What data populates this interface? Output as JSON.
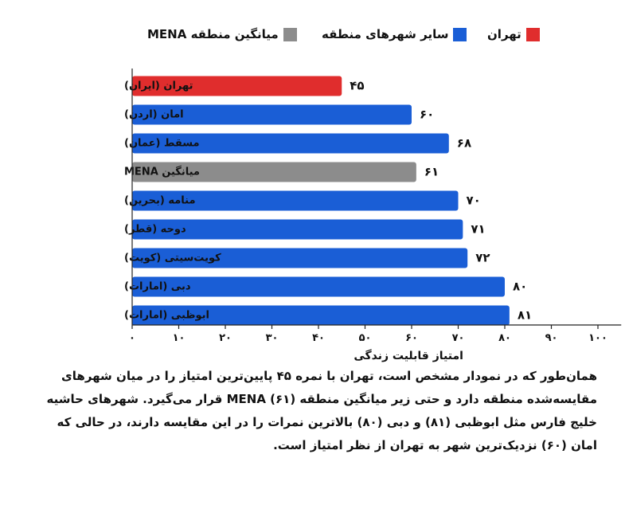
{
  "legend": [
    {
      "label": "تهران",
      "color": "#e02d2d"
    },
    {
      "label": "سایر شهرهای منطقه",
      "color": "#1a5ed6"
    },
    {
      "label": "میانگین منطقه MENA",
      "color": "#8c8c8c"
    }
  ],
  "chart_data": {
    "type": "bar",
    "orientation": "horizontal",
    "categories": [
      "تهران (ایران)",
      "امان (اردن)",
      "مسقط (عمان)",
      "میانگین MENA",
      "منامه (بحرین)",
      "دوحه (قطر)",
      "کویت‌سیتی (کویت)",
      "دبی (امارات)",
      "ابوظبی (امارات)"
    ],
    "values": [
      45,
      60,
      68,
      61,
      70,
      71,
      72,
      80,
      81
    ],
    "value_labels": [
      "۴۵",
      "۶۰",
      "۶۸",
      "۶۱",
      "۷۰",
      "۷۱",
      "۷۲",
      "۸۰",
      "۸۱"
    ],
    "bar_colors": [
      "#e02d2d",
      "#1a5ed6",
      "#1a5ed6",
      "#8c8c8c",
      "#1a5ed6",
      "#1a5ed6",
      "#1a5ed6",
      "#1a5ed6",
      "#1a5ed6"
    ],
    "xlabel": "امتیاز قابلیت زندگی",
    "ylabel": "",
    "xlim": [
      0,
      105
    ],
    "xticks": [
      0,
      10,
      20,
      30,
      40,
      50,
      60,
      70,
      80,
      90,
      100
    ],
    "xtick_labels": [
      "۰",
      "۱۰",
      "۲۰",
      "۳۰",
      "۴۰",
      "۵۰",
      "۶۰",
      "۷۰",
      "۸۰",
      "۹۰",
      "۱۰۰"
    ],
    "grid": false,
    "legend_position": "top"
  },
  "caption": "همان‌طور که در نمودار مشخص است، تهران با نمره ۴۵ پایین‌ترین امتیاز را در میان شهرهای مقایسه‌شده منطقه دارد و حتی زیر میانگین منطقه MENA (۶۱) قرار می‌گیرد. شهرهای حاشیه خلیج فارس مثل ابوظبی (۸۱) و دبی (۸۰) بالاترین نمرات را در این مقایسه دارند، در حالی که امان (۶۰) نزدیک‌ترین شهر به تهران از نظر امتیاز است."
}
